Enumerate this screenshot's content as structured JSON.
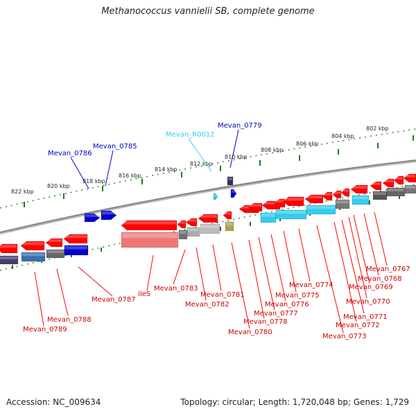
{
  "title": "Methanococcus vannielii SB, complete genome",
  "footer": {
    "accession": "Accession: NC_009634",
    "summary": "Topology: circular; Length: 1,720,048 bp; Genes: 1,729"
  },
  "colors": {
    "red": "#ff0000",
    "blue": "#0000cc",
    "cyan": "#33ccee",
    "tick": "#1a7a1a",
    "backbone": "#808080"
  },
  "kbp_labels": [
    "822 kbp",
    "820 kbp",
    "818 kbp",
    "816 kbp",
    "814 kbp",
    "812 kbp",
    "810 kbp",
    "808 kbp",
    "806 kbp",
    "804 kbp",
    "802 kbp"
  ],
  "labels_top": [
    {
      "text": "Mevan_0786",
      "color": "blue"
    },
    {
      "text": "Mevan_0785",
      "color": "blue"
    },
    {
      "text": "Mevan_R0012",
      "color": "cyan"
    },
    {
      "text": "Mevan_0779",
      "color": "blue"
    }
  ],
  "labels_bottom": [
    "Mevan_0789",
    "Mevan_0788",
    "Mevan_0787",
    "ileS",
    "Mevan_0783",
    "Mevan_0782",
    "Mevan_0781",
    "Mevan_0780",
    "Mevan_0778",
    "Mevan_0777",
    "Mevan_0776",
    "Mevan_0775",
    "Mevan_0774",
    "Mevan_0773",
    "Mevan_0772",
    "Mevan_0771",
    "Mevan_0770",
    "Mevan_0769",
    "Mevan_0768",
    "Mevan_0767"
  ]
}
